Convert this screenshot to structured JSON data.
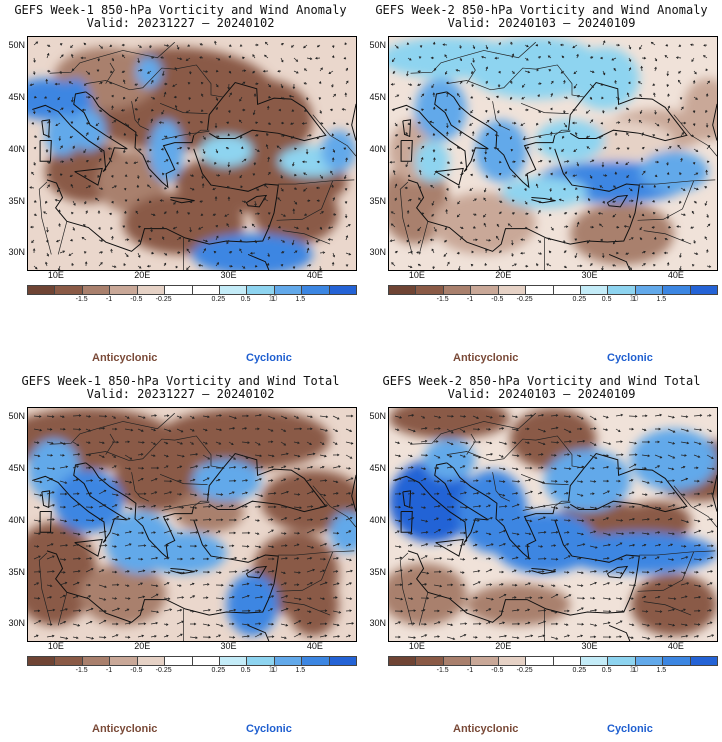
{
  "colorbar": {
    "labels": [
      "-1.5",
      "-1",
      "-0.5",
      "-0.25",
      "0.25",
      "0.5",
      "1",
      "1.5"
    ],
    "scale_note": "10",
    "colors": [
      "#6f4434",
      "#8a5a46",
      "#a9806d",
      "#c9a898",
      "#e6d2c6",
      "#ffffff",
      "#ffffff",
      "#c4ecf8",
      "#8ed4f0",
      "#62a9ea",
      "#3c86e2",
      "#2463d6"
    ]
  },
  "axes": {
    "lat_labels": [
      "50N",
      "45N",
      "40N",
      "35N",
      "30N"
    ],
    "lon_labels": [
      "10E",
      "20E",
      "30E",
      "40E"
    ]
  },
  "legend": {
    "anticyclonic": "Anticyclonic",
    "cyclonic": "Cyclonic",
    "anticyclonic_color": "#7a4a38",
    "cyclonic_color": "#1f5fd0"
  },
  "panels": [
    {
      "title": "GEFS Week-1 850-hPa Vorticity and Wind Anomaly",
      "valid": "Valid: 20231227 – 20240102"
    },
    {
      "title": "GEFS Week-2 850-hPa Vorticity and Wind Anomaly",
      "valid": "Valid: 20240103 – 20240109"
    },
    {
      "title": "GEFS Week-1 850-hPa Vorticity and Wind Total",
      "valid": "Valid: 20231227 – 20240102"
    },
    {
      "title": "GEFS Week-2 850-hPa Vorticity and Wind Total",
      "valid": "Valid: 20240103 – 20240109"
    }
  ]
}
